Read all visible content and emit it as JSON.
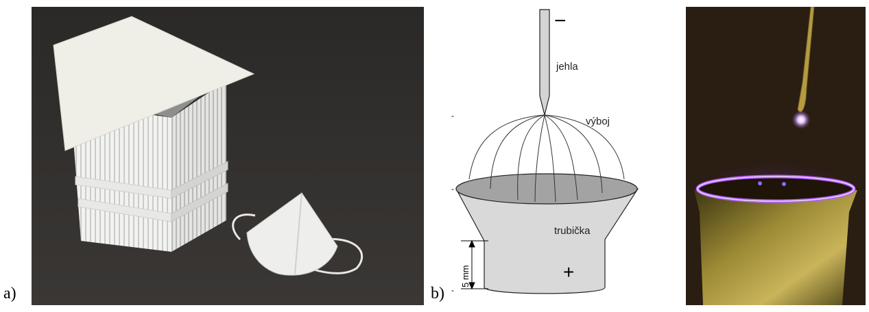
{
  "figure": {
    "panel_a": {
      "label": "a)"
    },
    "panel_b": {
      "label": "b)",
      "minus_sign": "−",
      "plus_sign": "+",
      "needle_label": "jehla",
      "discharge_label": "výboj",
      "tube_label": "trubička",
      "dimension_label": "5 mm",
      "edge_marks": [
        "-",
        "-",
        "-"
      ]
    }
  },
  "colors": {
    "dark_background": "#2a2826",
    "box_white": "#f3f4f2",
    "lid": "#efeee6",
    "tube_fill": "#d8d8d8",
    "tube_top": "#a0a0a0",
    "discharge_purple": "#a040ff",
    "copper_gold": "#8a7a2a"
  }
}
